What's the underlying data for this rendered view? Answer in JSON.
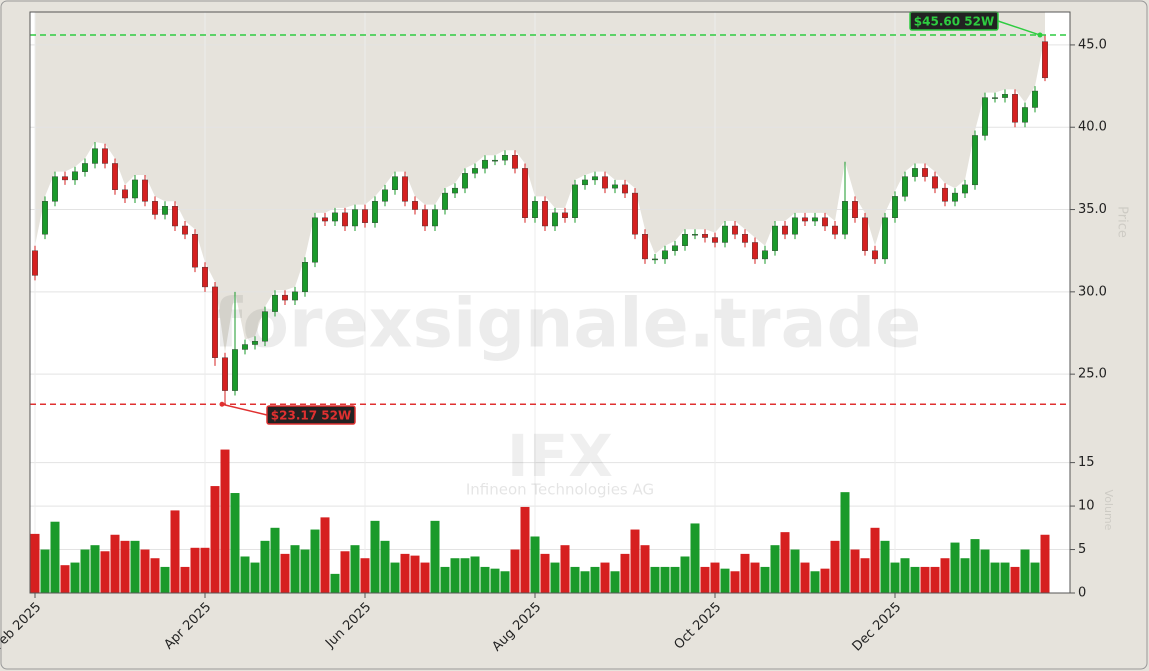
{
  "chart_data": {
    "type": "candlestick",
    "watermark": "forexsignale.trade",
    "symbol": "IFX",
    "company": "Infineon Technologies AG",
    "ylabel": "Price",
    "volume_label": "Volume",
    "up_color": "#1a9a2a",
    "down_color": "#d62020",
    "grid": true,
    "categories": [
      "Feb 2025",
      null,
      null,
      null,
      null,
      null,
      null,
      null,
      null,
      null,
      null,
      null,
      null,
      null,
      null,
      null,
      null,
      "Apr 2025",
      null,
      null,
      null,
      null,
      null,
      null,
      null,
      null,
      null,
      null,
      null,
      null,
      null,
      null,
      null,
      "Jun 2025",
      null,
      null,
      null,
      null,
      null,
      null,
      null,
      null,
      null,
      null,
      null,
      null,
      null,
      null,
      null,
      null,
      "Aug 2025",
      null,
      null,
      null,
      null,
      null,
      null,
      null,
      null,
      null,
      null,
      null,
      null,
      null,
      null,
      null,
      null,
      null,
      "Oct 2025",
      null,
      null,
      null,
      null,
      null,
      null,
      null,
      null,
      null,
      null,
      null,
      null,
      null,
      null,
      null,
      null,
      null,
      "Dec 2025",
      null,
      null,
      null,
      null,
      null,
      null,
      null,
      null,
      null,
      null,
      null,
      null,
      null,
      null,
      null
    ],
    "open": [
      32.5,
      33.5,
      35.5,
      37.0,
      36.8,
      37.3,
      37.8,
      38.7,
      37.8,
      36.2,
      35.7,
      36.8,
      35.5,
      34.7,
      35.2,
      34.0,
      33.5,
      31.5,
      30.3,
      26.0,
      24.0,
      26.5,
      26.8,
      27.0,
      28.8,
      29.8,
      29.5,
      30.0,
      31.8,
      34.5,
      34.3,
      34.8,
      34.0,
      35.0,
      34.2,
      35.5,
      36.2,
      37.0,
      35.5,
      35.0,
      34.0,
      35.0,
      36.0,
      36.3,
      37.2,
      37.5,
      38.0,
      38.0,
      38.3,
      37.5,
      34.5,
      35.5,
      34.0,
      34.8,
      34.5,
      36.5,
      36.8,
      37.0,
      36.3,
      36.5,
      36.0,
      33.5,
      32.0,
      32.0,
      32.5,
      32.8,
      33.5,
      33.5,
      33.3,
      33.0,
      34.0,
      33.5,
      33.0,
      32.0,
      32.5,
      34.0,
      33.5,
      34.5,
      34.3,
      34.5,
      34.0,
      33.5,
      35.5,
      34.5,
      32.5,
      32.0,
      34.5,
      35.8,
      37.0,
      37.5,
      37.0,
      36.3,
      35.5,
      36.0,
      36.5,
      39.5,
      41.8,
      41.8,
      42.0,
      40.3,
      41.2,
      45.2
    ],
    "high": [
      32.8,
      35.8,
      37.3,
      37.3,
      37.6,
      38.1,
      39.1,
      39.0,
      38.1,
      36.5,
      37.1,
      37.1,
      35.8,
      35.5,
      35.5,
      34.3,
      33.8,
      31.8,
      30.6,
      26.3,
      30.0,
      27.1,
      27.3,
      29.1,
      30.1,
      30.1,
      30.3,
      32.1,
      34.8,
      34.8,
      35.1,
      35.1,
      35.3,
      35.3,
      35.8,
      36.5,
      37.3,
      37.3,
      35.8,
      35.3,
      35.3,
      36.3,
      36.6,
      37.5,
      37.8,
      38.3,
      38.3,
      38.6,
      38.6,
      37.8,
      35.8,
      35.8,
      35.1,
      35.1,
      36.8,
      37.1,
      37.3,
      37.3,
      36.8,
      36.8,
      36.3,
      33.8,
      32.3,
      32.8,
      33.1,
      33.8,
      33.8,
      33.8,
      33.6,
      34.3,
      34.3,
      33.8,
      33.3,
      32.8,
      34.3,
      34.3,
      34.8,
      34.8,
      34.8,
      34.8,
      34.3,
      37.9,
      35.8,
      34.8,
      32.8,
      34.8,
      36.1,
      37.3,
      37.8,
      37.8,
      37.3,
      36.6,
      36.3,
      36.8,
      39.8,
      42.1,
      42.1,
      42.3,
      42.3,
      41.5,
      42.5,
      45.6
    ],
    "low": [
      30.7,
      33.2,
      35.2,
      36.5,
      36.5,
      37.0,
      37.5,
      37.5,
      35.9,
      35.4,
      35.4,
      35.2,
      34.4,
      34.4,
      33.7,
      33.2,
      31.2,
      30.0,
      25.5,
      23.17,
      23.7,
      26.2,
      26.5,
      26.7,
      28.5,
      29.2,
      29.2,
      29.7,
      31.5,
      34.0,
      34.0,
      33.7,
      33.7,
      33.9,
      33.9,
      35.2,
      35.9,
      35.2,
      34.7,
      33.7,
      33.7,
      34.7,
      35.7,
      36.0,
      36.9,
      37.2,
      37.7,
      37.7,
      37.2,
      34.2,
      34.2,
      33.7,
      33.7,
      34.2,
      34.2,
      36.2,
      36.5,
      36.0,
      36.0,
      35.7,
      33.2,
      31.7,
      31.7,
      31.7,
      32.2,
      32.5,
      33.2,
      33.0,
      32.7,
      32.7,
      33.2,
      32.7,
      31.7,
      31.7,
      32.2,
      33.2,
      33.2,
      34.0,
      34.0,
      33.7,
      33.2,
      33.2,
      34.2,
      32.2,
      31.7,
      31.7,
      34.2,
      35.5,
      36.7,
      36.7,
      36.0,
      35.2,
      35.2,
      35.7,
      36.2,
      39.2,
      41.5,
      41.5,
      40.0,
      40.0,
      40.9,
      42.8
    ],
    "close": [
      31.0,
      35.5,
      37.0,
      36.8,
      37.3,
      37.8,
      38.7,
      37.8,
      36.2,
      35.7,
      36.8,
      35.5,
      34.7,
      35.2,
      34.0,
      33.5,
      31.5,
      30.3,
      26.0,
      24.0,
      26.5,
      26.8,
      27.0,
      28.8,
      29.8,
      29.5,
      30.0,
      31.8,
      34.5,
      34.3,
      34.8,
      34.0,
      35.0,
      34.2,
      35.5,
      36.2,
      37.0,
      35.5,
      35.0,
      34.0,
      35.0,
      36.0,
      36.3,
      37.2,
      37.5,
      38.0,
      38.0,
      38.3,
      37.5,
      34.5,
      35.5,
      34.0,
      34.8,
      34.5,
      36.5,
      36.8,
      37.0,
      36.3,
      36.5,
      36.0,
      33.5,
      32.0,
      32.0,
      32.5,
      32.8,
      33.5,
      33.5,
      33.3,
      33.0,
      34.0,
      33.5,
      33.0,
      32.0,
      32.5,
      34.0,
      33.5,
      34.5,
      34.3,
      34.5,
      34.0,
      33.5,
      35.5,
      34.5,
      32.5,
      32.0,
      34.5,
      35.8,
      37.0,
      37.5,
      37.0,
      36.3,
      35.5,
      36.0,
      36.5,
      39.5,
      41.8,
      41.8,
      42.0,
      40.3,
      41.2,
      42.2,
      43.0
    ],
    "volume": [
      6.8,
      5.0,
      8.2,
      3.2,
      3.5,
      5.0,
      5.5,
      4.8,
      6.7,
      6.0,
      6.0,
      5.0,
      4.0,
      3.0,
      9.5,
      3.0,
      5.2,
      5.2,
      12.3,
      16.5,
      11.5,
      4.2,
      3.5,
      6.0,
      7.5,
      4.5,
      5.5,
      5.0,
      7.3,
      8.7,
      2.2,
      4.8,
      5.5,
      4.0,
      8.3,
      6.0,
      3.5,
      4.5,
      4.3,
      3.5,
      8.3,
      3.0,
      4.0,
      4.0,
      4.2,
      3.0,
      2.8,
      2.5,
      5.0,
      9.9,
      6.5,
      4.5,
      3.5,
      5.5,
      3.0,
      2.5,
      3.0,
      3.5,
      2.5,
      4.5,
      7.3,
      5.5,
      3.0,
      3.0,
      3.0,
      4.2,
      8.0,
      3.0,
      3.5,
      2.8,
      2.5,
      4.5,
      3.5,
      3.0,
      5.5,
      7.0,
      5.0,
      3.5,
      2.5,
      2.8,
      6.0,
      11.6,
      5.0,
      4.0,
      7.5,
      6.0,
      3.5,
      4.0,
      3.0,
      3.0,
      3.0,
      4.0,
      5.8,
      4.0,
      6.2,
      5.0,
      3.5,
      3.5,
      3.0,
      5.0,
      3.5,
      6.7
    ],
    "ylim": [
      21,
      47
    ],
    "yticks": [
      {
        "value": 25,
        "label": "25.0"
      },
      {
        "value": 30,
        "label": "30.0"
      },
      {
        "value": 35,
        "label": "35.0"
      },
      {
        "value": 40,
        "label": "40.0"
      },
      {
        "value": 45,
        "label": "45.0"
      }
    ],
    "volume_ylim": [
      0,
      17.6
    ],
    "volume_yticks": [
      0,
      5,
      10,
      15
    ],
    "high_line": {
      "value": 45.6,
      "label": "$45.60 52W",
      "color": "#2ecc40"
    },
    "low_line": {
      "value": 23.17,
      "label": "$23.17 52W",
      "color": "#e03030"
    }
  }
}
